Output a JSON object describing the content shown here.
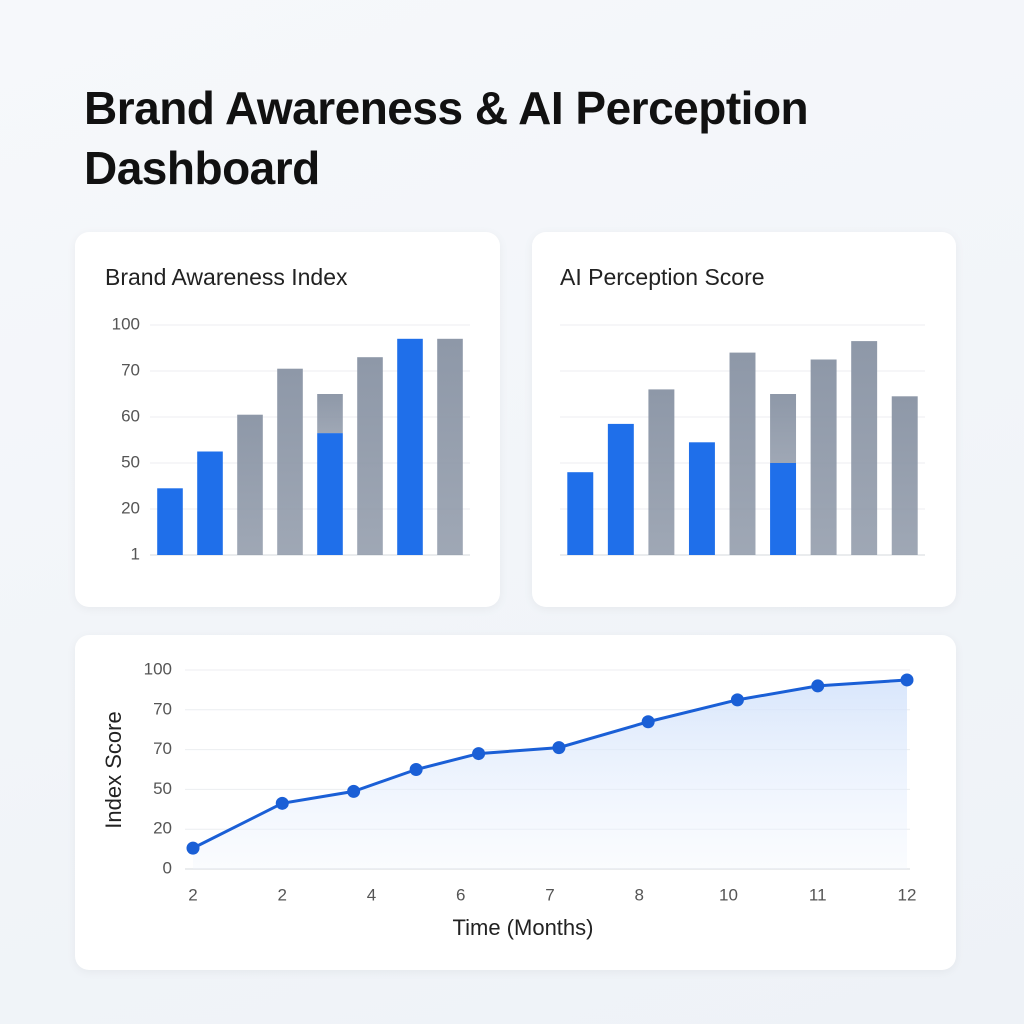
{
  "title": "Brand Awareness & AI Perception Dashboard",
  "chart_data": [
    {
      "type": "bar",
      "title": "Brand Awareness Index",
      "ylim": [
        0,
        100
      ],
      "yticks": [
        {
          "value": 0,
          "label": "1"
        },
        20,
        {
          "value": 40,
          "label": "50"
        },
        60,
        {
          "value": 80,
          "label": "70"
        },
        100
      ],
      "tick_labels": true,
      "grid": true,
      "stacked": true,
      "series": [
        {
          "color": "#1f6fea",
          "values": [
            29,
            45,
            null,
            null,
            53,
            null,
            94,
            null
          ]
        },
        {
          "color": "#8e98a8",
          "values": [
            null,
            null,
            61,
            81,
            17,
            86,
            null,
            94
          ]
        }
      ]
    },
    {
      "type": "bar",
      "title": "AI Perception Score",
      "ylim": [
        0,
        100
      ],
      "yticks": [
        0,
        20,
        40,
        60,
        80,
        100
      ],
      "tick_labels": false,
      "grid": true,
      "stacked": true,
      "series": [
        {
          "color": "#1f6fea",
          "values": [
            36,
            57,
            null,
            49,
            null,
            40,
            null,
            null,
            null
          ]
        },
        {
          "color": "#8e98a8",
          "values": [
            null,
            null,
            72,
            null,
            88,
            30,
            85,
            93,
            69
          ]
        }
      ]
    },
    {
      "type": "line",
      "y_label": "Index Score",
      "x_label": "Time (Months)",
      "xlim": [
        0,
        8
      ],
      "xticks": [
        {
          "value": 0,
          "label": "2"
        },
        {
          "value": 1,
          "label": "2"
        },
        {
          "value": 2,
          "label": "4"
        },
        {
          "value": 3,
          "label": "6"
        },
        {
          "value": 4,
          "label": "7"
        },
        {
          "value": 5,
          "label": "8"
        },
        {
          "value": 6,
          "label": "10"
        },
        {
          "value": 7,
          "label": "11"
        },
        {
          "value": 8,
          "label": "12"
        }
      ],
      "ylim": [
        0,
        100
      ],
      "yticks": [
        0,
        20,
        {
          "value": 40,
          "label": "50"
        },
        {
          "value": 60,
          "label": "70"
        },
        {
          "value": 80,
          "label": "70"
        },
        100
      ],
      "grid": true,
      "series": [
        {
          "color": "#1a5fd6",
          "x": [
            0,
            1,
            1.8,
            2.5,
            3.2,
            4.1,
            5.1,
            6.1,
            7,
            8
          ],
          "values": [
            10.5,
            33,
            39,
            50,
            58,
            61,
            74,
            85,
            92,
            95
          ]
        }
      ]
    }
  ]
}
